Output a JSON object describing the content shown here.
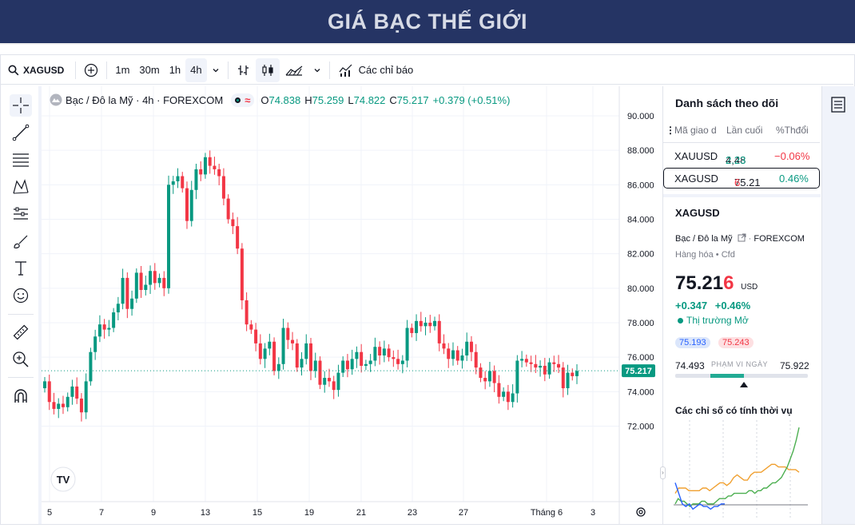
{
  "banner": {
    "title": "GIÁ BẠC THẾ GIỚI"
  },
  "toolbar": {
    "symbol": "XAGUSD",
    "intervals": [
      "1m",
      "30m",
      "1h",
      "4h"
    ],
    "active_interval": "4h",
    "indicators_label": "Các chỉ báo"
  },
  "legend": {
    "name": "Bạc / Đô la Mỹ · 4h · FOREXCOM",
    "wave": "≈",
    "o_label": "O",
    "o": "74.838",
    "h_label": "H",
    "h": "75.259",
    "l_label": "L",
    "l": "74.822",
    "c_label": "C",
    "c": "75.217",
    "change": "+0.379 (+0.51%)"
  },
  "watchlist": {
    "title": "Danh sách theo dõi",
    "col_symbol": "Mã giao d",
    "col_last": "Lần cuối",
    "col_change": "%Thđổi",
    "rows": [
      {
        "symbol": "XAUUSD",
        "last_a": "4,48",
        "last_b": "2.23",
        "change": "−0.06%"
      },
      {
        "symbol": "XAGUSD",
        "last_a": "75.21",
        "last_b": "6",
        "change": "0.46%"
      }
    ]
  },
  "detail": {
    "symbol": "XAGUSD",
    "name": "Bạc / Đô la Mỹ",
    "exchange": "FOREXCOM",
    "category": "Hàng hóa",
    "type": "Cfd",
    "price_main": "75.21",
    "price_last": "6",
    "currency": "USD",
    "change_abs": "+0.347",
    "change_pct": "+0.46%",
    "market_status": "Thị trường Mở",
    "bid": "75.193",
    "ask": "75.243",
    "range_low": "74.493",
    "range_label": "PHẠM VI NGÀY",
    "range_high": "75.922",
    "range_fraction": 0.5,
    "seasonal_title": "Các chỉ số có tính thời vụ"
  },
  "chart_data": {
    "type": "candlestick",
    "title": "",
    "xlabel": "",
    "ylabel": "",
    "ylim": [
      70.5,
      90.6
    ],
    "y_ticks": [
      "90.000",
      "88.000",
      "86.000",
      "84.000",
      "82.000",
      "80.000",
      "78.000",
      "76.000",
      "74.000",
      "72.000"
    ],
    "x_ticks": [
      "5",
      "7",
      "9",
      "13",
      "15",
      "19",
      "21",
      "23",
      "27",
      "Tháng 6",
      "3"
    ],
    "last_price": "75.217",
    "closes": [
      74.6,
      73.4,
      73.0,
      73.3,
      73.1,
      73.7,
      74.3,
      73.6,
      72.8,
      74.6,
      76.3,
      77.2,
      77.9,
      77.6,
      77.7,
      78.6,
      79.1,
      80.6,
      78.8,
      79.4,
      80.9,
      79.9,
      80.2,
      81.0,
      80.3,
      80.6,
      80.0,
      86.0,
      86.2,
      86.5,
      85.8,
      83.9,
      85.7,
      86.9,
      86.6,
      87.6,
      87.1,
      86.9,
      86.5,
      85.2,
      84.0,
      83.6,
      82.3,
      79.3,
      77.9,
      77.6,
      76.8,
      75.9,
      76.5,
      76.9,
      75.2,
      75.6,
      77.7,
      77.0,
      76.8,
      75.4,
      75.9,
      76.8,
      75.2,
      75.8,
      74.4,
      74.8,
      74.6,
      74.1,
      75.1,
      75.8,
      75.3,
      75.9,
      76.3,
      75.5,
      75.6,
      75.8,
      76.6,
      76.1,
      76.5,
      76.0,
      75.9,
      75.6,
      75.8,
      77.7,
      77.4,
      78.1,
      77.8,
      78.0,
      77.8,
      78.1,
      76.8,
      76.5,
      75.9,
      76.4,
      75.8,
      76.1,
      76.9,
      76.3,
      75.4,
      74.8,
      74.6,
      75.2,
      74.5,
      73.7,
      74.0,
      73.4,
      73.9,
      75.8,
      75.9,
      75.7,
      75.6,
      75.4,
      75.5,
      75.0,
      75.7,
      75.6,
      75.4,
      74.2,
      75.1,
      74.9,
      75.2
    ]
  },
  "seasonal": {
    "green": [
      72,
      74,
      73,
      73,
      72,
      71,
      72,
      72,
      72,
      73,
      73,
      72,
      72,
      72,
      73,
      74,
      74,
      74,
      75,
      75,
      76,
      76,
      76,
      76,
      76,
      77,
      77,
      76,
      77,
      77,
      78,
      78,
      79,
      80,
      80,
      81,
      82,
      84,
      86,
      89,
      92,
      96,
      101
    ],
    "orange": [
      76,
      78,
      78,
      78,
      77,
      77,
      77,
      77,
      78,
      78,
      77,
      78,
      79,
      80,
      80,
      79,
      80,
      82,
      83,
      82,
      81,
      81,
      83,
      84,
      84,
      84,
      85,
      86,
      87,
      87,
      86,
      86,
      86,
      85,
      85,
      85,
      84
    ],
    "blue": [
      80,
      76,
      72,
      71,
      72,
      70,
      71,
      72,
      71,
      71,
      70,
      71,
      71,
      72,
      72
    ]
  }
}
